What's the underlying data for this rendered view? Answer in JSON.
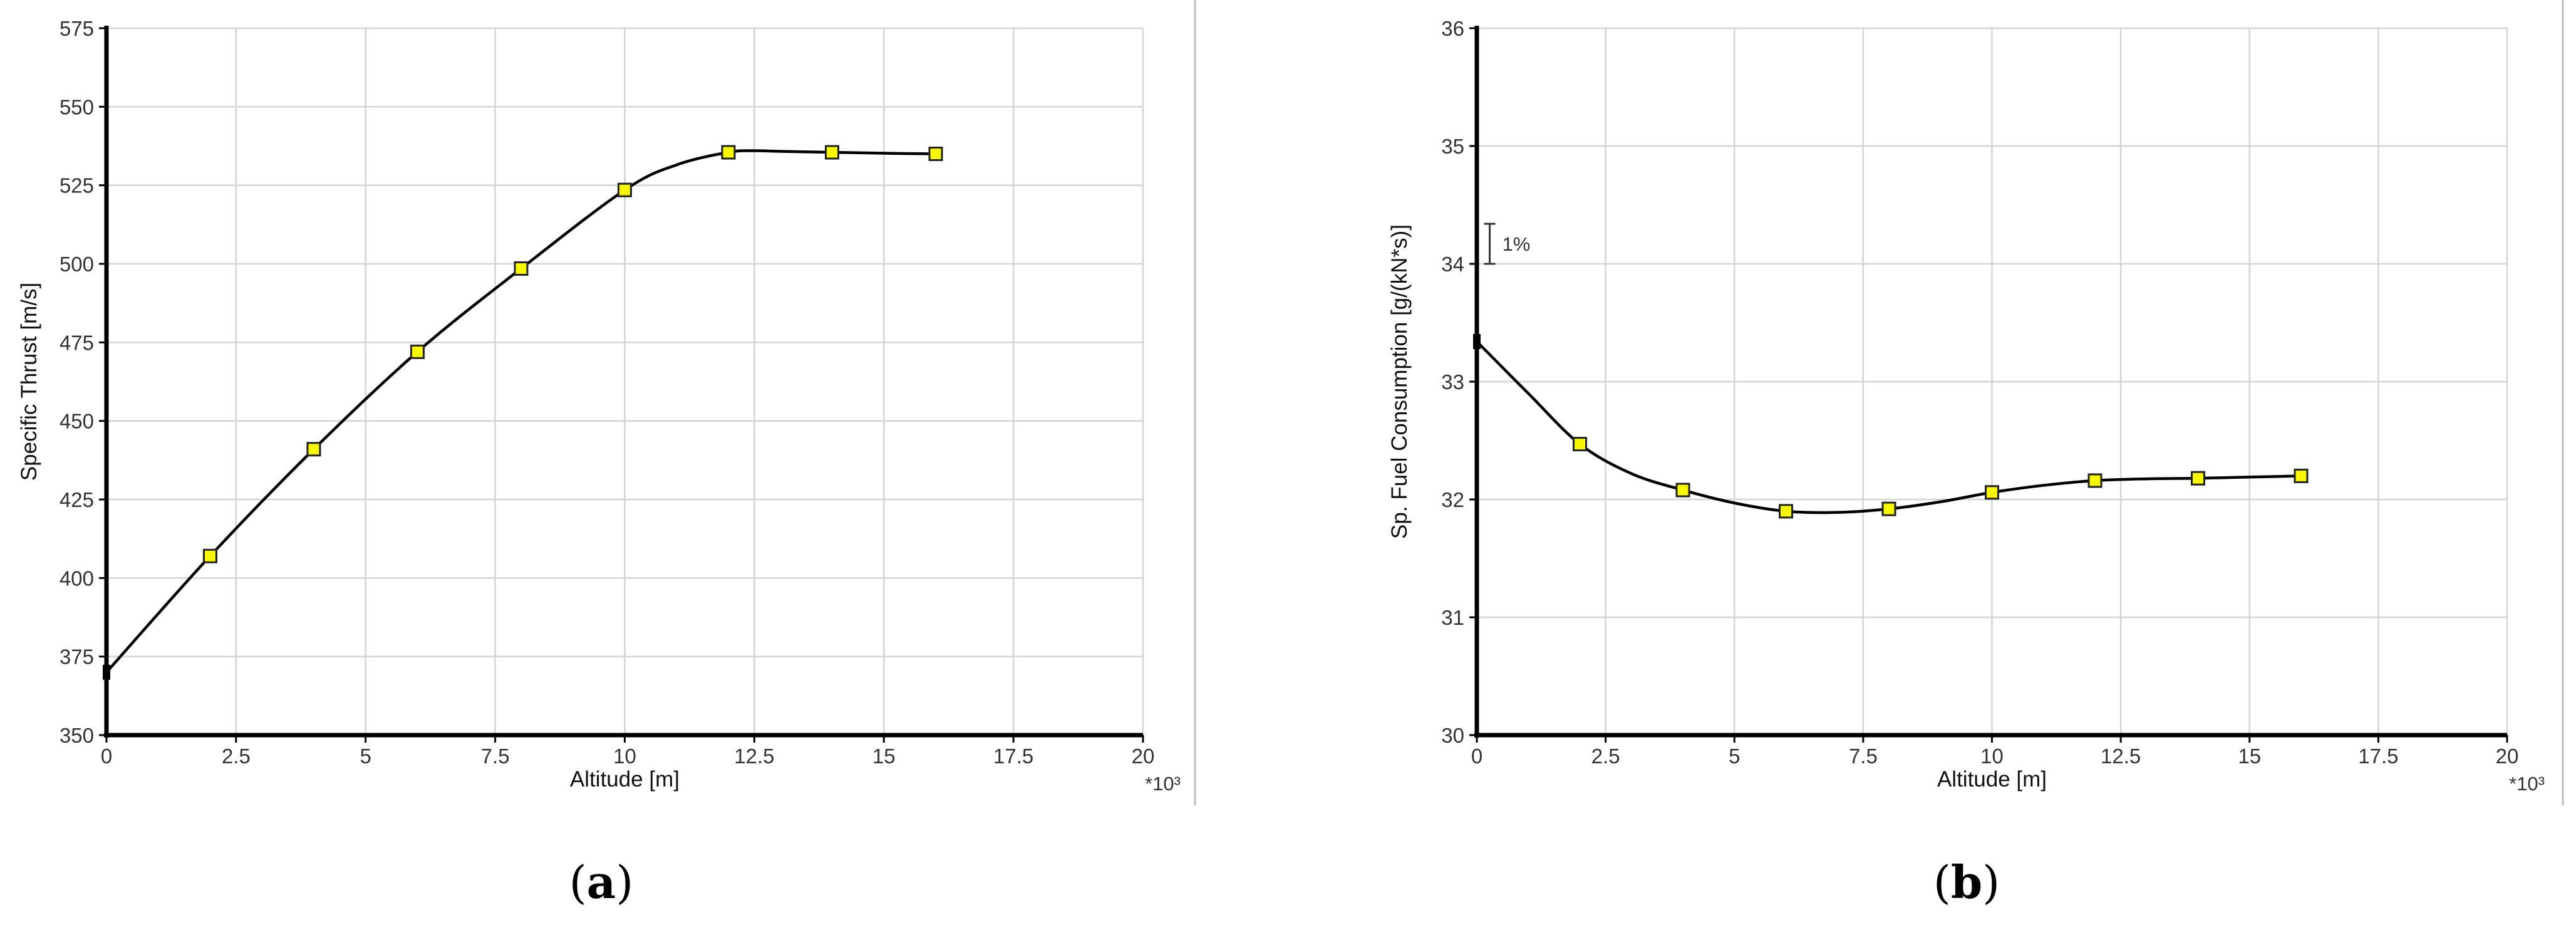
{
  "chart_data": [
    {
      "type": "line",
      "panel_label": "a",
      "xlabel": "Altitude [m]",
      "ylabel": "Specific Thrust [m/s]",
      "x_scale_note": "*10³",
      "xlim": [
        0,
        20
      ],
      "ylim": [
        350,
        575
      ],
      "xticks": [
        0,
        2.5,
        5,
        7.5,
        10,
        12.5,
        15,
        17.5,
        20
      ],
      "xtick_labels": [
        "0",
        "2.5",
        "5",
        "7.5",
        "10",
        "12.5",
        "15",
        "17.5",
        "20"
      ],
      "yticks": [
        350,
        375,
        400,
        425,
        450,
        475,
        500,
        525,
        550,
        575
      ],
      "ytick_labels": [
        "350",
        "375",
        "400",
        "425",
        "450",
        "475",
        "500",
        "525",
        "550",
        "575"
      ],
      "grid": true,
      "series": [
        {
          "x": [
            0,
            2,
            4,
            6,
            8,
            10,
            12,
            14,
            16
          ],
          "y": [
            370,
            407,
            441,
            472,
            498.5,
            523.5,
            535.5,
            535.5,
            535
          ],
          "curve_x": [
            0,
            2,
            4,
            6,
            8,
            10,
            11,
            12,
            12.5,
            13,
            14,
            15,
            16
          ],
          "curve_y": [
            370,
            407,
            441,
            472,
            498.5,
            523.5,
            531.5,
            535.5,
            536,
            535.8,
            535.5,
            535.2,
            535
          ],
          "markers_from_index": 1,
          "color": "#000000",
          "marker_color": "#f7f700"
        }
      ]
    },
    {
      "type": "line",
      "panel_label": "b",
      "xlabel": "Altitude [m]",
      "ylabel": "Sp. Fuel Consumption [g/(kN*s)]",
      "x_scale_note": "*10³",
      "annotation": "1%",
      "annotation_span": [
        34.0,
        34.34
      ],
      "annotation_x": 0.25,
      "xlim": [
        0,
        20
      ],
      "ylim": [
        30,
        36
      ],
      "xticks": [
        0,
        2.5,
        5,
        7.5,
        10,
        12.5,
        15,
        17.5,
        20
      ],
      "xtick_labels": [
        "0",
        "2.5",
        "5",
        "7.5",
        "10",
        "12.5",
        "15",
        "17.5",
        "20"
      ],
      "yticks": [
        30,
        31,
        32,
        33,
        34,
        35,
        36
      ],
      "ytick_labels": [
        "30",
        "31",
        "32",
        "33",
        "34",
        "35",
        "36"
      ],
      "grid": true,
      "series": [
        {
          "x": [
            0,
            2,
            4,
            6,
            8,
            10,
            12,
            14,
            16
          ],
          "y": [
            33.34,
            32.47,
            32.08,
            31.9,
            31.92,
            32.06,
            32.16,
            32.18,
            32.2
          ],
          "curve_x": [
            0,
            1,
            2,
            3,
            4,
            5,
            6,
            7,
            8,
            9,
            10,
            11,
            12,
            13,
            14,
            15,
            16
          ],
          "curve_y": [
            33.34,
            32.9,
            32.47,
            32.22,
            32.08,
            31.97,
            31.9,
            31.89,
            31.92,
            31.98,
            32.06,
            32.12,
            32.16,
            32.175,
            32.18,
            32.19,
            32.2
          ],
          "markers_from_index": 1,
          "color": "#000000",
          "marker_color": "#f7f700"
        }
      ]
    }
  ]
}
